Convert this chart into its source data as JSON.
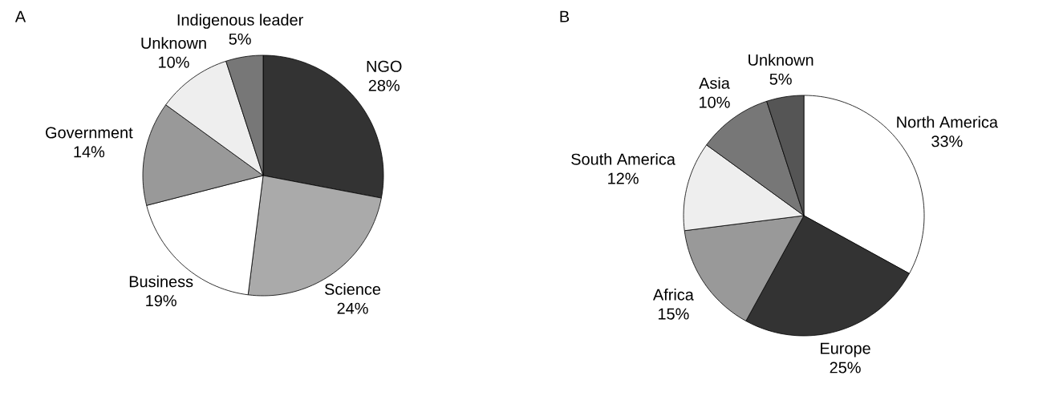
{
  "chart_data": [
    {
      "type": "pie",
      "title": "A",
      "categories": [
        "NGO",
        "Science",
        "Business",
        "Government",
        "Unknown",
        "Indigenous leader"
      ],
      "values": [
        28,
        24,
        19,
        14,
        10,
        5
      ],
      "value_labels": [
        "28%",
        "24%",
        "19%",
        "14%",
        "10%",
        "5%"
      ],
      "colors": [
        "#333333",
        "#aaaaaa",
        "#ffffff",
        "#999999",
        "#eeeeee",
        "#777777"
      ]
    },
    {
      "type": "pie",
      "title": "B",
      "categories": [
        "North America",
        "Europe",
        "Africa",
        "South America",
        "Asia",
        "Unknown"
      ],
      "values": [
        33,
        25,
        15,
        12,
        10,
        5
      ],
      "value_labels": [
        "33%",
        "25%",
        "15%",
        "12%",
        "10%",
        "5%"
      ],
      "colors": [
        "#ffffff",
        "#333333",
        "#999999",
        "#eeeeee",
        "#777777",
        "#555555"
      ]
    }
  ]
}
